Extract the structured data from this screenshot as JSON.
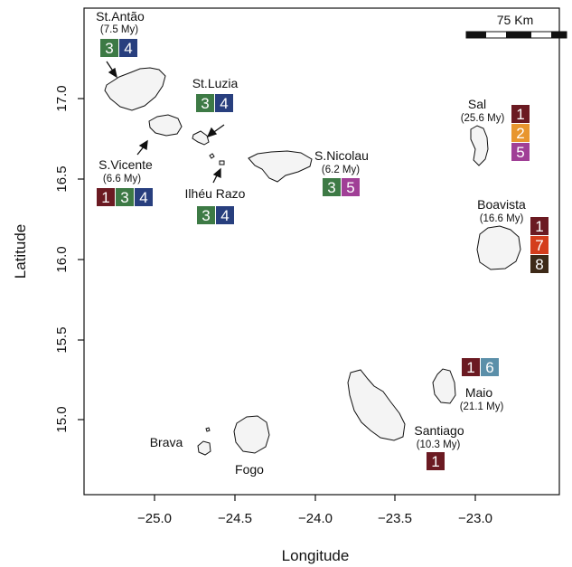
{
  "axes": {
    "xlabel": "Longitude",
    "ylabel": "Latitude",
    "x_ticks": [
      "−25.0",
      "−24.5",
      "−24.0",
      "−23.5",
      "−23.0"
    ],
    "y_ticks": [
      "15.0",
      "15.5",
      "16.0",
      "16.5",
      "17.0"
    ]
  },
  "scale_bar": {
    "label": "75 Km"
  },
  "palette": {
    "1": "#6b1a22",
    "2": "#e8962e",
    "3": "#3d7a45",
    "4": "#283f7e",
    "5": "#a03f96",
    "6": "#5b8fa9",
    "7": "#d43d1c",
    "8": "#3e2a18"
  },
  "islands": [
    {
      "id": "st-antao",
      "name": "St.Antão",
      "age": "(7.5 My)",
      "badges": [
        "3",
        "4"
      ]
    },
    {
      "id": "st-luzia",
      "name": "St.Luzia",
      "age": "",
      "badges": [
        "3",
        "4"
      ]
    },
    {
      "id": "s-vicente",
      "name": "S.Vicente",
      "age": "(6.6 My)",
      "badges": [
        "1",
        "3",
        "4"
      ]
    },
    {
      "id": "ilheu-razo",
      "name": "Ilhéu Razo",
      "age": "",
      "badges": [
        "3",
        "4"
      ]
    },
    {
      "id": "s-nicolau",
      "name": "S.Nicolau",
      "age": "(6.2 My)",
      "badges": [
        "3",
        "5"
      ]
    },
    {
      "id": "sal",
      "name": "Sal",
      "age": "(25.6 My)",
      "badges": [
        "1",
        "2",
        "5"
      ]
    },
    {
      "id": "boavista",
      "name": "Boavista",
      "age": "(16.6 My)",
      "badges": [
        "1",
        "7",
        "8"
      ]
    },
    {
      "id": "maio",
      "name": "Maio",
      "age": "(21.1 My)",
      "badges": [
        "1",
        "6"
      ]
    },
    {
      "id": "santiago",
      "name": "Santiago",
      "age": "(10.3 My)",
      "badges": [
        "1"
      ]
    },
    {
      "id": "brava",
      "name": "Brava",
      "age": "",
      "badges": []
    },
    {
      "id": "fogo",
      "name": "Fogo",
      "age": "",
      "badges": []
    }
  ]
}
